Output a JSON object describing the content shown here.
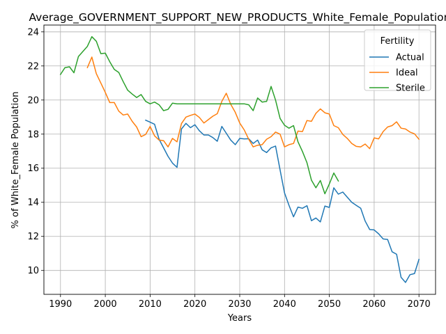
{
  "chart_data": {
    "type": "line",
    "title": "Average_GOVERNMENT_SUPPORT_NEW_PRODUCTS_White_Female_Population",
    "xlabel": "Years",
    "ylabel": "% of White_Female Population",
    "xlim": [
      1986.3,
      2073.7
    ],
    "ylim": [
      8.6,
      24.4
    ],
    "xticks": [
      1990,
      2000,
      2010,
      2020,
      2030,
      2040,
      2050,
      2060,
      2070
    ],
    "yticks": [
      10,
      12,
      14,
      16,
      18,
      20,
      22,
      24
    ],
    "grid": true,
    "legend": {
      "title": "Fertility",
      "placement": "top-right"
    },
    "series": [
      {
        "name": "Actual",
        "color": "#1f77b4",
        "x": [
          2009,
          2010,
          2011,
          2012,
          2013,
          2014,
          2015,
          2016,
          2017,
          2018,
          2019,
          2020,
          2021,
          2022,
          2023,
          2024,
          2025,
          2026,
          2027,
          2028,
          2029,
          2030,
          2031,
          2032,
          2033,
          2034,
          2035,
          2036,
          2037,
          2038,
          2039,
          2040,
          2041,
          2042,
          2043,
          2044,
          2045,
          2046,
          2047,
          2048,
          2049,
          2050,
          2051,
          2052,
          2053,
          2054,
          2055,
          2056,
          2057,
          2058,
          2059,
          2060,
          2061,
          2062,
          2063,
          2064,
          2065,
          2066,
          2067,
          2068,
          2069,
          2070
        ],
        "y": [
          18.82,
          18.7,
          18.58,
          17.7,
          17.2,
          16.7,
          16.3,
          16.05,
          18.3,
          18.63,
          18.38,
          18.55,
          18.2,
          17.95,
          17.95,
          17.8,
          17.58,
          18.45,
          18.05,
          17.65,
          17.38,
          17.75,
          17.72,
          17.73,
          17.45,
          17.65,
          17.08,
          16.92,
          17.2,
          17.3,
          15.9,
          14.55,
          13.82,
          13.15,
          13.72,
          13.65,
          13.8,
          12.92,
          13.08,
          12.85,
          13.78,
          13.7,
          14.85,
          14.48,
          14.6,
          14.3,
          14.0,
          13.82,
          13.65,
          12.9,
          12.4,
          12.38,
          12.15,
          11.85,
          11.82,
          11.1,
          10.95,
          9.6,
          9.3,
          9.75,
          9.82,
          10.65
        ]
      },
      {
        "name": "Ideal",
        "color": "#ff7f0e",
        "x": [
          1996,
          1997,
          1998,
          1999,
          2000,
          2001,
          2002,
          2003,
          2004,
          2005,
          2006,
          2007,
          2008,
          2009,
          2010,
          2011,
          2012,
          2013,
          2014,
          2015,
          2016,
          2017,
          2018,
          2019,
          2020,
          2021,
          2022,
          2023,
          2024,
          2025,
          2026,
          2027,
          2028,
          2029,
          2030,
          2031,
          2032,
          2033,
          2034,
          2035,
          2036,
          2037,
          2038,
          2039,
          2040,
          2041,
          2042,
          2043,
          2044,
          2045,
          2046,
          2047,
          2048,
          2049,
          2050,
          2051,
          2052,
          2053,
          2054,
          2055,
          2056,
          2057,
          2058,
          2059,
          2060,
          2061,
          2062,
          2063,
          2064,
          2065,
          2066,
          2067,
          2068,
          2069,
          2070
        ],
        "y": [
          21.9,
          22.52,
          21.55,
          21.0,
          20.45,
          19.85,
          19.85,
          19.35,
          19.12,
          19.18,
          18.75,
          18.42,
          17.85,
          17.98,
          18.45,
          17.9,
          17.65,
          17.62,
          17.25,
          17.75,
          17.55,
          18.62,
          19.0,
          19.1,
          19.18,
          18.98,
          18.65,
          18.85,
          19.05,
          19.2,
          19.92,
          20.4,
          19.75,
          19.28,
          18.65,
          18.25,
          17.7,
          17.25,
          17.35,
          17.38,
          17.7,
          17.85,
          18.12,
          18.0,
          17.25,
          17.38,
          17.45,
          18.18,
          18.15,
          18.8,
          18.75,
          19.22,
          19.48,
          19.25,
          19.18,
          18.5,
          18.38,
          17.98,
          17.75,
          17.45,
          17.28,
          17.25,
          17.42,
          17.15,
          17.78,
          17.72,
          18.15,
          18.42,
          18.5,
          18.72,
          18.35,
          18.3,
          18.12,
          18.02,
          17.7
        ]
      },
      {
        "name": "Sterile",
        "color": "#2ca02c",
        "x": [
          1990,
          1991,
          1992,
          1993,
          1994,
          1995,
          1996,
          1997,
          1998,
          1999,
          2000,
          2001,
          2002,
          2003,
          2004,
          2005,
          2006,
          2007,
          2008,
          2009,
          2010,
          2011,
          2012,
          2013,
          2014,
          2015,
          2016,
          2017,
          2018,
          2019,
          2020,
          2021,
          2022,
          2023,
          2024,
          2025,
          2026,
          2027,
          2028,
          2029,
          2030,
          2031,
          2032,
          2033,
          2034,
          2035,
          2036,
          2037,
          2038,
          2039,
          2040,
          2041,
          2042,
          2043,
          2044,
          2045,
          2046,
          2047,
          2048,
          2049,
          2050,
          2051,
          2052
        ],
        "y": [
          21.5,
          21.9,
          21.95,
          21.6,
          22.55,
          22.85,
          23.15,
          23.72,
          23.45,
          22.72,
          22.75,
          22.25,
          21.8,
          21.62,
          21.08,
          20.58,
          20.35,
          20.15,
          20.32,
          19.92,
          19.78,
          19.88,
          19.72,
          19.38,
          19.45,
          19.82,
          19.78,
          19.78,
          19.78,
          19.78,
          19.78,
          19.78,
          19.78,
          19.78,
          19.78,
          19.78,
          19.78,
          19.78,
          19.78,
          19.78,
          19.78,
          19.78,
          19.72,
          19.38,
          20.12,
          19.88,
          19.92,
          20.8,
          20.0,
          18.92,
          18.52,
          18.35,
          18.5,
          17.55,
          16.98,
          16.32,
          15.3,
          14.85,
          15.28,
          14.5,
          15.08,
          15.72,
          15.25
        ]
      }
    ]
  }
}
